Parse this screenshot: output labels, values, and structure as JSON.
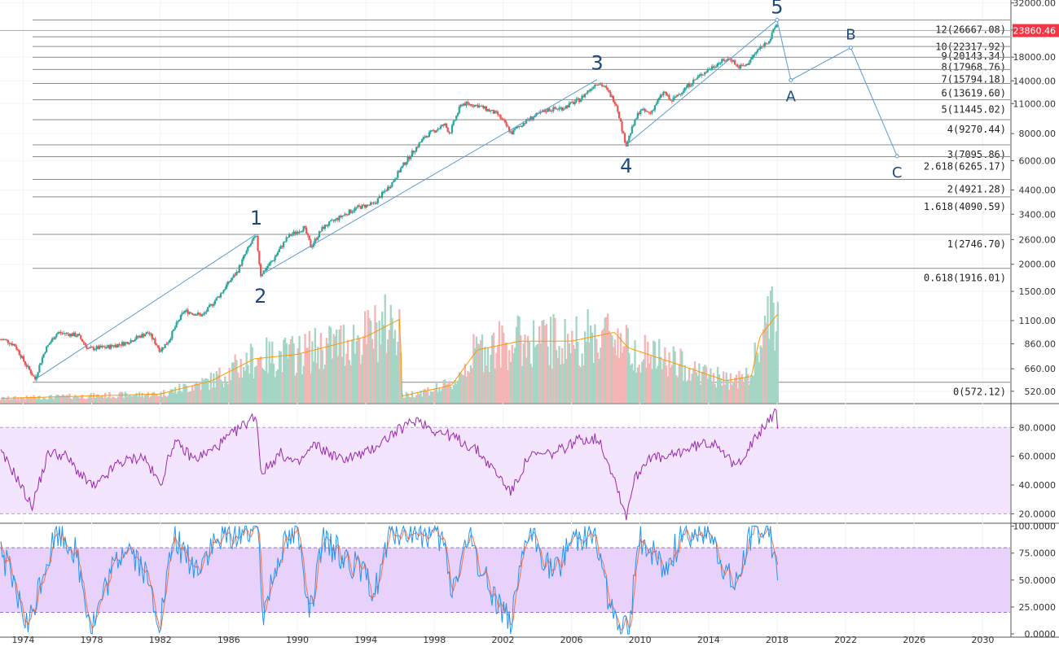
{
  "chart_data": {
    "type": "candlestick",
    "title": "",
    "price_scale": "log",
    "price_ticks": [
      "32000.00",
      "24000.00",
      "18000.00",
      "14000.00",
      "11000.00",
      "8000.00",
      "6000.00",
      "4400.00",
      "3400.00",
      "2600.00",
      "2000.00",
      "1500.00",
      "1100.00",
      "860.00",
      "660.00",
      "520.00"
    ],
    "price_tick_values": [
      32000,
      24000,
      18000,
      14000,
      11000,
      8000,
      6000,
      4400,
      3400,
      2600,
      2000,
      1500,
      1100,
      860,
      660,
      520
    ],
    "price_ylim": [
      460,
      33000
    ],
    "last_price": {
      "label": "23860.46",
      "value": 23860.46,
      "color": "#f23645"
    },
    "x_ticks": [
      "1974",
      "1978",
      "1982",
      "1986",
      "1990",
      "1994",
      "1998",
      "2002",
      "2006",
      "2010",
      "2014",
      "2018",
      "2022",
      "2026",
      "2030"
    ],
    "x_tick_values": [
      1974,
      1978,
      1982,
      1986,
      1990,
      1994,
      1998,
      2002,
      2006,
      2010,
      2014,
      2018,
      2022,
      2026,
      2030
    ],
    "x_range": [
      1972.65,
      2031.6
    ],
    "fib_levels": [
      {
        "label": "12(26667.08)",
        "value": 26667.08
      },
      {
        "label": "10(22317.92)",
        "value": 22317.92
      },
      {
        "label": "9(20143.34)",
        "value": 20143.34
      },
      {
        "label": "8(17968.76)",
        "value": 17968.76
      },
      {
        "label": "7(15794.18)",
        "value": 15794.18
      },
      {
        "label": "6(13619.60)",
        "value": 13619.6
      },
      {
        "label": "5(11445.02)",
        "value": 11445.02
      },
      {
        "label": "4(9270.44)",
        "value": 9270.44
      },
      {
        "label": "3(7095.86)",
        "value": 7095.86
      },
      {
        "label": "2.618(6265.17)",
        "value": 6265.17
      },
      {
        "label": "2(4921.28)",
        "value": 4921.28
      },
      {
        "label": "1.618(4090.59)",
        "value": 4090.59
      },
      {
        "label": "1(2746.70)",
        "value": 2746.7
      },
      {
        "label": "0.618(1916.01)",
        "value": 1916.01
      },
      {
        "label": "0(572.12)",
        "value": 572.12
      }
    ],
    "price_anchors": [
      [
        1972.9,
        900
      ],
      [
        1973.5,
        850
      ],
      [
        1974.1,
        700
      ],
      [
        1974.7,
        590
      ],
      [
        1975.3,
        810
      ],
      [
        1976.0,
        970
      ],
      [
        1977.2,
        940
      ],
      [
        1977.8,
        815
      ],
      [
        1978.9,
        830
      ],
      [
        1980.0,
        870
      ],
      [
        1981.3,
        970
      ],
      [
        1982.0,
        800
      ],
      [
        1982.5,
        890
      ],
      [
        1983.4,
        1220
      ],
      [
        1984.5,
        1160
      ],
      [
        1985.5,
        1450
      ],
      [
        1986.5,
        1850
      ],
      [
        1987.3,
        2500
      ],
      [
        1987.6,
        2700
      ],
      [
        1987.85,
        1780
      ],
      [
        1988.6,
        2100
      ],
      [
        1989.5,
        2700
      ],
      [
        1990.4,
        2950
      ],
      [
        1990.8,
        2400
      ],
      [
        1991.5,
        2950
      ],
      [
        1992.5,
        3300
      ],
      [
        1993.5,
        3650
      ],
      [
        1994.5,
        3800
      ],
      [
        1995.5,
        4700
      ],
      [
        1996.5,
        6200
      ],
      [
        1997.5,
        7800
      ],
      [
        1998.6,
        8800
      ],
      [
        1998.9,
        8000
      ],
      [
        1999.6,
        11000
      ],
      [
        2000.5,
        10800
      ],
      [
        2001.7,
        9800
      ],
      [
        2002.5,
        8000
      ],
      [
        2002.8,
        8500
      ],
      [
        2003.5,
        9300
      ],
      [
        2004.6,
        10300
      ],
      [
        2005.5,
        10500
      ],
      [
        2006.5,
        11500
      ],
      [
        2007.5,
        13800
      ],
      [
        2007.9,
        13200
      ],
      [
        2008.6,
        11000
      ],
      [
        2009.0,
        8000
      ],
      [
        2009.2,
        7100
      ],
      [
        2010.0,
        10300
      ],
      [
        2010.6,
        9900
      ],
      [
        2011.4,
        12500
      ],
      [
        2011.8,
        11200
      ],
      [
        2012.7,
        13100
      ],
      [
        2013.6,
        15000
      ],
      [
        2014.6,
        17000
      ],
      [
        2015.3,
        17800
      ],
      [
        2015.7,
        16200
      ],
      [
        2016.2,
        16500
      ],
      [
        2016.9,
        19500
      ],
      [
        2017.6,
        21800
      ],
      [
        2018.0,
        26000
      ],
      [
        2018.05,
        25000
      ]
    ],
    "wave_labels": [
      {
        "label": "1",
        "x": 1987.6,
        "price": 2750
      },
      {
        "label": "2",
        "x": 1987.85,
        "price": 1780
      },
      {
        "label": "3",
        "x": 2007.5,
        "price": 14200
      },
      {
        "label": "4",
        "x": 2009.2,
        "price": 7100
      },
      {
        "label": "5",
        "x": 2018.0,
        "price": 26700
      },
      {
        "label": "A",
        "x": 2018.8,
        "price": 14100
      },
      {
        "label": "B",
        "x": 2022.3,
        "price": 19900
      },
      {
        "label": "C",
        "x": 2025.0,
        "price": 6300
      }
    ],
    "wave_lines": [
      {
        "from": [
          1974.7,
          590
        ],
        "to": [
          1987.6,
          2750
        ]
      },
      {
        "from": [
          1987.85,
          1780
        ],
        "to": [
          2007.5,
          14200
        ]
      },
      {
        "from": [
          2009.2,
          7100
        ],
        "to": [
          2018.0,
          26700
        ]
      }
    ],
    "projection": [
      [
        2018.0,
        26700
      ],
      [
        2018.8,
        14100
      ],
      [
        2022.3,
        19900
      ],
      [
        2025.0,
        6300
      ]
    ],
    "volume_anchors": [
      [
        1972.7,
        2
      ],
      [
        1982.0,
        4
      ],
      [
        1985.0,
        10
      ],
      [
        1987.5,
        20
      ],
      [
        1990.0,
        22
      ],
      [
        1994.0,
        30
      ],
      [
        1996.0,
        38
      ],
      [
        1996.1,
        3
      ],
      [
        1999.0,
        8
      ],
      [
        2000.5,
        24
      ],
      [
        2003.0,
        28
      ],
      [
        2006.0,
        28
      ],
      [
        2008.5,
        32
      ],
      [
        2009.3,
        25
      ],
      [
        2012.0,
        18
      ],
      [
        2015.0,
        10
      ],
      [
        2016.5,
        12
      ],
      [
        2017.0,
        30
      ],
      [
        2018.0,
        40
      ]
    ],
    "volume_ylim": [
      0,
      48
    ],
    "rsi": {
      "ticks": [
        "80.0000",
        "60.0000",
        "40.0000",
        "20.0000"
      ],
      "tick_values": [
        80,
        60,
        40,
        20
      ],
      "ylim": [
        14,
        96
      ],
      "band": [
        20,
        80
      ],
      "color": "#9c27b0",
      "anchors": [
        [
          1972.7,
          62
        ],
        [
          1973.5,
          48
        ],
        [
          1974.5,
          25
        ],
        [
          1975.5,
          63
        ],
        [
          1976.5,
          60
        ],
        [
          1977.5,
          45
        ],
        [
          1978.2,
          38
        ],
        [
          1979.5,
          55
        ],
        [
          1981.0,
          60
        ],
        [
          1982.0,
          40
        ],
        [
          1982.8,
          70
        ],
        [
          1984.0,
          58
        ],
        [
          1985.0,
          64
        ],
        [
          1986.5,
          78
        ],
        [
          1987.6,
          89
        ],
        [
          1987.9,
          48
        ],
        [
          1989.0,
          62
        ],
        [
          1990.0,
          54
        ],
        [
          1991.0,
          68
        ],
        [
          1992.5,
          58
        ],
        [
          1994.0,
          62
        ],
        [
          1995.5,
          75
        ],
        [
          1997.0,
          86
        ],
        [
          1998.0,
          78
        ],
        [
          1999.0,
          74
        ],
        [
          2000.5,
          64
        ],
        [
          2001.5,
          50
        ],
        [
          2002.5,
          35
        ],
        [
          2003.5,
          60
        ],
        [
          2005.0,
          62
        ],
        [
          2006.5,
          72
        ],
        [
          2007.6,
          72
        ],
        [
          2008.5,
          45
        ],
        [
          2009.2,
          18
        ],
        [
          2009.6,
          42
        ],
        [
          2010.5,
          60
        ],
        [
          2011.5,
          58
        ],
        [
          2012.5,
          64
        ],
        [
          2013.5,
          68
        ],
        [
          2014.5,
          70
        ],
        [
          2015.5,
          52
        ],
        [
          2016.5,
          68
        ],
        [
          2017.5,
          85
        ],
        [
          2018.0,
          92
        ],
        [
          2018.05,
          68
        ]
      ]
    },
    "stoch": {
      "ticks": [
        "100.0000",
        "75.0000",
        "50.0000",
        "25.0000",
        "0.0000"
      ],
      "tick_values": [
        100,
        75,
        50,
        25,
        0
      ],
      "ylim": [
        -3,
        102
      ],
      "band": [
        20,
        80
      ],
      "k_color": "#2196f3",
      "d_color": "#ff7043",
      "anchors": [
        [
          1972.7,
          80
        ],
        [
          1973.5,
          40
        ],
        [
          1974.3,
          5
        ],
        [
          1975.2,
          60
        ],
        [
          1976.0,
          95
        ],
        [
          1977.0,
          80
        ],
        [
          1978.0,
          5
        ],
        [
          1979.0,
          50
        ],
        [
          1980.0,
          85
        ],
        [
          1981.0,
          60
        ],
        [
          1982.0,
          10
        ],
        [
          1982.8,
          90
        ],
        [
          1984.0,
          60
        ],
        [
          1985.0,
          80
        ],
        [
          1986.5,
          95
        ],
        [
          1987.7,
          98
        ],
        [
          1988.0,
          20
        ],
        [
          1989.0,
          80
        ],
        [
          1990.0,
          95
        ],
        [
          1990.8,
          20
        ],
        [
          1991.5,
          85
        ],
        [
          1993.0,
          70
        ],
        [
          1994.5,
          40
        ],
        [
          1995.5,
          95
        ],
        [
          1997.0,
          95
        ],
        [
          1998.5,
          85
        ],
        [
          1999.0,
          40
        ],
        [
          2000.0,
          90
        ],
        [
          2001.0,
          50
        ],
        [
          2002.5,
          10
        ],
        [
          2003.5,
          95
        ],
        [
          2005.0,
          55
        ],
        [
          2006.0,
          90
        ],
        [
          2007.3,
          95
        ],
        [
          2008.5,
          10
        ],
        [
          2009.3,
          0
        ],
        [
          2010.0,
          90
        ],
        [
          2011.5,
          60
        ],
        [
          2012.5,
          95
        ],
        [
          2014.0,
          95
        ],
        [
          2015.5,
          40
        ],
        [
          2016.5,
          95
        ],
        [
          2017.5,
          98
        ],
        [
          2018.05,
          60
        ]
      ]
    }
  }
}
